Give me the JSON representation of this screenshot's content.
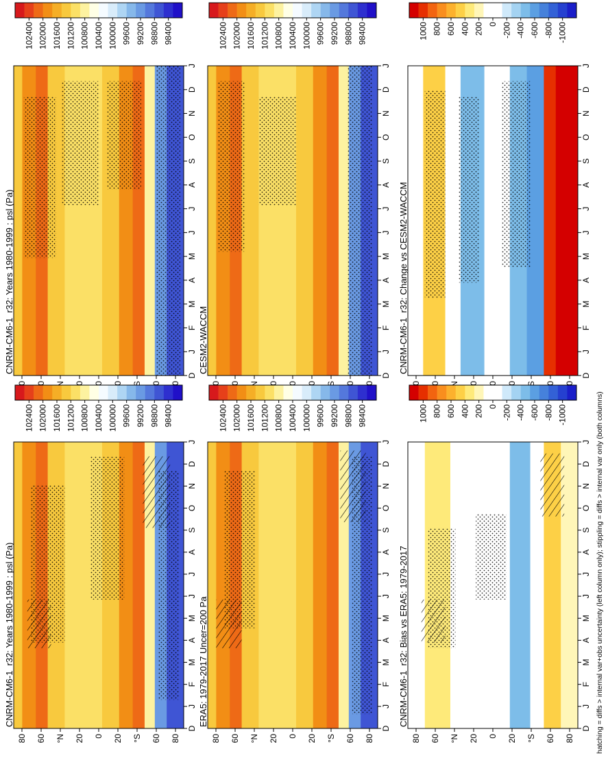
{
  "figure": {
    "footer": "hatching = diffs > internal var+obs uncertainty (left column only); stippling = diffs > internal var only (both columns)"
  },
  "colors": {
    "abs_scale": [
      "#d7191c",
      "#e6401a",
      "#ee6a16",
      "#f28e15",
      "#f5ae26",
      "#f8c93e",
      "#fbe066",
      "#fdf2a0",
      "#ffffe5",
      "#f5fbff",
      "#d8ecfa",
      "#aed5f3",
      "#86b8ea",
      "#6a9ae3",
      "#5478dc",
      "#3f55d4",
      "#2e2fcf",
      "#2010c8"
    ],
    "anom_scale": [
      "#d40000",
      "#e62f00",
      "#f26410",
      "#f98e1e",
      "#fcb12d",
      "#fdd046",
      "#feea7a",
      "#fff6b8",
      "#ffffff",
      "#ffffff",
      "#cfe9fa",
      "#a4d3f2",
      "#7dbde9",
      "#5b9fe2",
      "#4681db",
      "#3361d6",
      "#2540d0",
      "#1a1ec9"
    ]
  },
  "chart_data": [
    {
      "type": "heatmap",
      "title": "CNRM-CM6-1_r32: Years 1980-1999 : psl (Pa)",
      "x": [
        "D",
        "J",
        "F",
        "M",
        "A",
        "M",
        "J",
        "J",
        "A",
        "S",
        "O",
        "N",
        "D",
        "J"
      ],
      "y": [
        "80",
        "60",
        "°N",
        "20",
        "0",
        "20",
        "°S",
        "60",
        "80"
      ],
      "colorbar": [
        "102400",
        "102000",
        "101600",
        "101200",
        "100800",
        "100400",
        "100000",
        "99600",
        "99200",
        "98800",
        "98400"
      ],
      "hatching": true,
      "stippling": true
    },
    {
      "type": "heatmap",
      "title": "CNRM-CM6-1_r32: Years 1980-1999 : psl (Pa)",
      "x": [
        "D",
        "J",
        "F",
        "M",
        "A",
        "M",
        "J",
        "J",
        "A",
        "S",
        "O",
        "N",
        "D",
        "J"
      ],
      "y": [
        "80",
        "60",
        "°N",
        "20",
        "0",
        "20",
        "°S",
        "60",
        "80"
      ],
      "colorbar": [
        "102400",
        "102000",
        "101600",
        "101200",
        "100800",
        "100400",
        "100000",
        "99600",
        "99200",
        "98800",
        "98400"
      ],
      "hatching": false,
      "stippling": true
    },
    {
      "type": "heatmap",
      "title": "ERA5: 1979-2017 Uncer=200 Pa",
      "x": [
        "D",
        "J",
        "F",
        "M",
        "A",
        "M",
        "J",
        "J",
        "A",
        "S",
        "O",
        "N",
        "D",
        "J"
      ],
      "y": [
        "80",
        "60",
        "°N",
        "20",
        "0",
        "20",
        "°S",
        "60",
        "80"
      ],
      "colorbar": [
        "102400",
        "102000",
        "101600",
        "101200",
        "100800",
        "100400",
        "100000",
        "99600",
        "99200",
        "98800",
        "98400"
      ],
      "hatching": true,
      "stippling": true
    },
    {
      "type": "heatmap",
      "title": "CESM2-WACCM",
      "x": [
        "D",
        "J",
        "F",
        "M",
        "A",
        "M",
        "J",
        "J",
        "A",
        "S",
        "O",
        "N",
        "D",
        "J"
      ],
      "y": [
        "80",
        "60",
        "°N",
        "20",
        "0",
        "20",
        "°S",
        "60",
        "80"
      ],
      "colorbar": [
        "102400",
        "102000",
        "101600",
        "101200",
        "100800",
        "100400",
        "100000",
        "99600",
        "99200",
        "98800",
        "98400"
      ],
      "hatching": false,
      "stippling": true
    },
    {
      "type": "heatmap",
      "title": "CNRM-CM6-1_r32: Bias vs ERA5: 1979-2017",
      "x": [
        "D",
        "J",
        "F",
        "M",
        "A",
        "M",
        "J",
        "J",
        "A",
        "S",
        "O",
        "N",
        "D",
        "J"
      ],
      "y": [
        "80",
        "60",
        "°N",
        "20",
        "0",
        "20",
        "°S",
        "60",
        "80"
      ],
      "colorbar": [
        "1000",
        "800",
        "600",
        "400",
        "200",
        "0",
        "-200",
        "-400",
        "-600",
        "-800",
        "-1000"
      ],
      "hatching": true,
      "stippling": true
    },
    {
      "type": "heatmap",
      "title": "CNRM-CM6-1_r32: Change vs CESM2-WACCM",
      "x": [
        "D",
        "J",
        "F",
        "M",
        "A",
        "M",
        "J",
        "J",
        "A",
        "S",
        "O",
        "N",
        "D",
        "J"
      ],
      "y": [
        "80",
        "60",
        "°N",
        "20",
        "0",
        "20",
        "°S",
        "60",
        "80"
      ],
      "colorbar": [
        "1000",
        "800",
        "600",
        "400",
        "200",
        "0",
        "-200",
        "-400",
        "-600",
        "-800",
        "-1000"
      ],
      "hatching": false,
      "stippling": true
    }
  ]
}
